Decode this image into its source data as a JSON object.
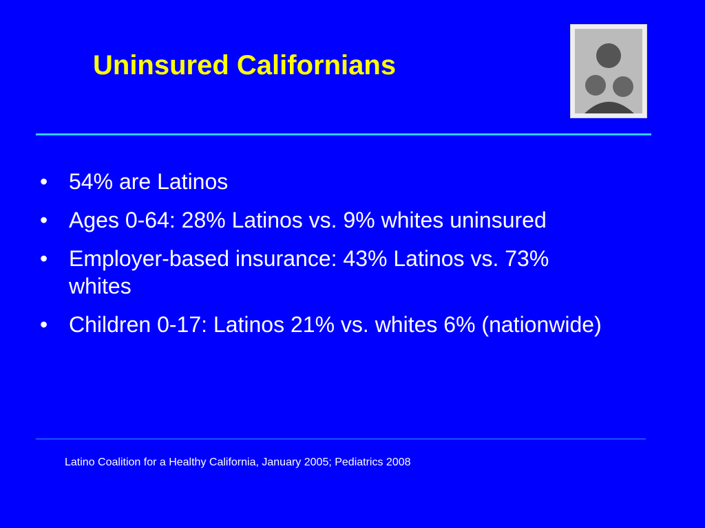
{
  "title": "Uninsured Californians",
  "bullets": [
    "54% are Latinos",
    "Ages 0-64: 28% Latinos vs.  9% whites uninsured",
    "Employer-based insurance: 43% Latinos vs. 73% whites",
    "Children 0-17: Latinos 21% vs. whites 6% (nationwide)"
  ],
  "source": "Latino Coalition for a Healthy California, January 2005; Pediatrics 2008"
}
